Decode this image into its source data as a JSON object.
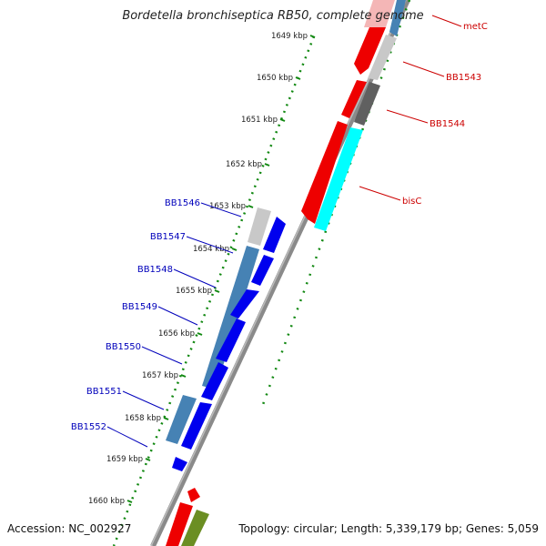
{
  "title": "Bordetella bronchiseptica RB50, complete genome",
  "footer": {
    "accession": "Accession: NC_002927",
    "summary": "Topology: circular; Length: 5,339,179 bp; Genes: 5,059"
  },
  "scale_ticks": [
    {
      "label": "1649 kbp"
    },
    {
      "label": "1650 kbp"
    },
    {
      "label": "1651 kbp"
    },
    {
      "label": "1652 kbp"
    },
    {
      "label": "1653 kbp"
    },
    {
      "label": "1654 kbp"
    },
    {
      "label": "1655 kbp"
    },
    {
      "label": "1656 kbp"
    },
    {
      "label": "1657 kbp"
    },
    {
      "label": "1658 kbp"
    },
    {
      "label": "1659 kbp"
    },
    {
      "label": "1660 kbp"
    }
  ],
  "gene_labels_right": [
    {
      "label": "metC",
      "color": "#cc0000"
    },
    {
      "label": "BB1543",
      "color": "#cc0000"
    },
    {
      "label": "BB1544",
      "color": "#cc0000"
    },
    {
      "label": "bisC",
      "color": "#cc0000"
    }
  ],
  "gene_labels_left": [
    {
      "label": "BB1546",
      "color": "#0000bb"
    },
    {
      "label": "BB1547",
      "color": "#0000bb"
    },
    {
      "label": "BB1548",
      "color": "#0000bb"
    },
    {
      "label": "BB1549",
      "color": "#0000bb"
    },
    {
      "label": "BB1550",
      "color": "#0000bb"
    },
    {
      "label": "BB1551",
      "color": "#0000bb"
    },
    {
      "label": "BB1552",
      "color": "#0000bb"
    }
  ],
  "colors": {
    "forward_cds": "#ee0000",
    "reverse_cds": "#0000ee",
    "backbone": "#888888",
    "tick": "#118811",
    "steel_blue": "#4682b4",
    "light_gray": "#c8c8c8",
    "dark_gray": "#606060",
    "cyan": "#00ffff",
    "olive": "#6b8e23"
  }
}
